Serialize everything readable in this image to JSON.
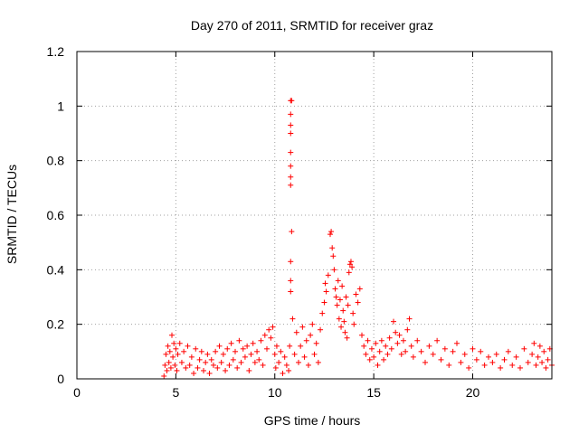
{
  "chart_data": {
    "type": "scatter",
    "title": "Day 270 of 2011, SRMTID for receiver graz",
    "xlabel": "GPS time / hours",
    "ylabel": "SRMTID / TECUs",
    "xlim": [
      0,
      24
    ],
    "ylim": [
      0,
      1.2
    ],
    "xticks": [
      0,
      5,
      10,
      15,
      20
    ],
    "xtick_labels": [
      "0",
      "5",
      "10",
      "15",
      "20"
    ],
    "yticks": [
      0,
      0.2,
      0.4,
      0.6,
      0.8,
      1.0,
      1.2
    ],
    "ytick_labels": [
      "0",
      "0.2",
      "0.4",
      "0.6",
      "0.8",
      "1",
      "1.2"
    ],
    "grid": true,
    "marker": "plus",
    "marker_color": "#ff0000",
    "series": [
      {
        "name": "SRMTID",
        "points": [
          [
            4.4,
            0.01
          ],
          [
            4.45,
            0.05
          ],
          [
            4.5,
            0.09
          ],
          [
            4.55,
            0.03
          ],
          [
            4.6,
            0.12
          ],
          [
            4.65,
            0.06
          ],
          [
            4.7,
            0.1
          ],
          [
            4.75,
            0.04
          ],
          [
            4.8,
            0.16
          ],
          [
            4.85,
            0.08
          ],
          [
            4.9,
            0.13
          ],
          [
            4.95,
            0.05
          ],
          [
            5.0,
            0.11
          ],
          [
            5.05,
            0.03
          ],
          [
            5.1,
            0.09
          ],
          [
            5.2,
            0.13
          ],
          [
            5.3,
            0.06
          ],
          [
            5.4,
            0.1
          ],
          [
            5.5,
            0.04
          ],
          [
            5.6,
            0.12
          ],
          [
            5.7,
            0.05
          ],
          [
            5.8,
            0.08
          ],
          [
            5.9,
            0.02
          ],
          [
            6.0,
            0.11
          ],
          [
            6.1,
            0.04
          ],
          [
            6.2,
            0.07
          ],
          [
            6.3,
            0.1
          ],
          [
            6.4,
            0.03
          ],
          [
            6.5,
            0.06
          ],
          [
            6.6,
            0.09
          ],
          [
            6.7,
            0.02
          ],
          [
            6.8,
            0.07
          ],
          [
            6.9,
            0.05
          ],
          [
            7.0,
            0.1
          ],
          [
            7.1,
            0.04
          ],
          [
            7.2,
            0.12
          ],
          [
            7.3,
            0.06
          ],
          [
            7.4,
            0.09
          ],
          [
            7.5,
            0.03
          ],
          [
            7.6,
            0.11
          ],
          [
            7.7,
            0.05
          ],
          [
            7.8,
            0.13
          ],
          [
            7.9,
            0.07
          ],
          [
            8.0,
            0.1
          ],
          [
            8.1,
            0.04
          ],
          [
            8.2,
            0.14
          ],
          [
            8.3,
            0.06
          ],
          [
            8.4,
            0.11
          ],
          [
            8.5,
            0.08
          ],
          [
            8.6,
            0.12
          ],
          [
            8.7,
            0.03
          ],
          [
            8.8,
            0.09
          ],
          [
            8.9,
            0.13
          ],
          [
            9.0,
            0.06
          ],
          [
            9.1,
            0.1
          ],
          [
            9.2,
            0.07
          ],
          [
            9.3,
            0.14
          ],
          [
            9.4,
            0.05
          ],
          [
            9.5,
            0.16
          ],
          [
            9.6,
            0.11
          ],
          [
            9.7,
            0.18
          ],
          [
            9.8,
            0.15
          ],
          [
            9.9,
            0.19
          ],
          [
            10.0,
            0.09
          ],
          [
            10.05,
            0.04
          ],
          [
            10.1,
            0.12
          ],
          [
            10.2,
            0.06
          ],
          [
            10.3,
            0.1
          ],
          [
            10.4,
            0.02
          ],
          [
            10.5,
            0.08
          ],
          [
            10.6,
            0.05
          ],
          [
            10.7,
            0.03
          ],
          [
            10.75,
            0.12
          ],
          [
            10.8,
            0.32
          ],
          [
            10.8,
            0.36
          ],
          [
            10.8,
            0.43
          ],
          [
            10.85,
            0.54
          ],
          [
            10.8,
            0.71
          ],
          [
            10.8,
            0.74
          ],
          [
            10.8,
            0.78
          ],
          [
            10.8,
            0.83
          ],
          [
            10.8,
            0.9
          ],
          [
            10.8,
            0.93
          ],
          [
            10.8,
            0.97
          ],
          [
            10.8,
            1.02
          ],
          [
            10.85,
            1.02
          ],
          [
            10.9,
            0.22
          ],
          [
            11.0,
            0.09
          ],
          [
            11.1,
            0.17
          ],
          [
            11.2,
            0.06
          ],
          [
            11.3,
            0.12
          ],
          [
            11.4,
            0.19
          ],
          [
            11.5,
            0.08
          ],
          [
            11.6,
            0.14
          ],
          [
            11.7,
            0.05
          ],
          [
            11.8,
            0.16
          ],
          [
            11.9,
            0.2
          ],
          [
            12.0,
            0.09
          ],
          [
            12.1,
            0.13
          ],
          [
            12.2,
            0.06
          ],
          [
            12.3,
            0.18
          ],
          [
            12.4,
            0.24
          ],
          [
            12.5,
            0.28
          ],
          [
            12.55,
            0.35
          ],
          [
            12.6,
            0.32
          ],
          [
            12.7,
            0.38
          ],
          [
            12.8,
            0.53
          ],
          [
            12.85,
            0.54
          ],
          [
            12.9,
            0.48
          ],
          [
            12.95,
            0.45
          ],
          [
            13.0,
            0.4
          ],
          [
            13.05,
            0.33
          ],
          [
            13.1,
            0.3
          ],
          [
            13.15,
            0.27
          ],
          [
            13.2,
            0.36
          ],
          [
            13.25,
            0.22
          ],
          [
            13.3,
            0.29
          ],
          [
            13.35,
            0.19
          ],
          [
            13.4,
            0.34
          ],
          [
            13.45,
            0.25
          ],
          [
            13.5,
            0.21
          ],
          [
            13.55,
            0.17
          ],
          [
            13.6,
            0.3
          ],
          [
            13.65,
            0.15
          ],
          [
            13.7,
            0.27
          ],
          [
            13.75,
            0.39
          ],
          [
            13.8,
            0.42
          ],
          [
            13.85,
            0.43
          ],
          [
            13.9,
            0.41
          ],
          [
            13.95,
            0.24
          ],
          [
            14.0,
            0.2
          ],
          [
            14.1,
            0.31
          ],
          [
            14.2,
            0.28
          ],
          [
            14.3,
            0.33
          ],
          [
            14.4,
            0.16
          ],
          [
            14.5,
            0.12
          ],
          [
            14.6,
            0.09
          ],
          [
            14.7,
            0.14
          ],
          [
            14.8,
            0.07
          ],
          [
            14.9,
            0.11
          ],
          [
            15.0,
            0.08
          ],
          [
            15.1,
            0.13
          ],
          [
            15.2,
            0.05
          ],
          [
            15.3,
            0.1
          ],
          [
            15.4,
            0.14
          ],
          [
            15.5,
            0.07
          ],
          [
            15.6,
            0.12
          ],
          [
            15.7,
            0.09
          ],
          [
            15.8,
            0.15
          ],
          [
            15.9,
            0.11
          ],
          [
            16.0,
            0.21
          ],
          [
            16.1,
            0.17
          ],
          [
            16.2,
            0.13
          ],
          [
            16.3,
            0.16
          ],
          [
            16.4,
            0.09
          ],
          [
            16.5,
            0.14
          ],
          [
            16.6,
            0.1
          ],
          [
            16.7,
            0.18
          ],
          [
            16.8,
            0.22
          ],
          [
            16.9,
            0.12
          ],
          [
            17.0,
            0.08
          ],
          [
            17.2,
            0.14
          ],
          [
            17.4,
            0.1
          ],
          [
            17.6,
            0.06
          ],
          [
            17.8,
            0.12
          ],
          [
            18.0,
            0.09
          ],
          [
            18.2,
            0.14
          ],
          [
            18.4,
            0.07
          ],
          [
            18.6,
            0.11
          ],
          [
            18.8,
            0.05
          ],
          [
            19.0,
            0.1
          ],
          [
            19.2,
            0.13
          ],
          [
            19.4,
            0.06
          ],
          [
            19.6,
            0.09
          ],
          [
            19.8,
            0.04
          ],
          [
            20.0,
            0.11
          ],
          [
            20.2,
            0.07
          ],
          [
            20.4,
            0.1
          ],
          [
            20.6,
            0.05
          ],
          [
            20.8,
            0.08
          ],
          [
            21.0,
            0.06
          ],
          [
            21.2,
            0.09
          ],
          [
            21.4,
            0.04
          ],
          [
            21.6,
            0.07
          ],
          [
            21.8,
            0.1
          ],
          [
            22.0,
            0.05
          ],
          [
            22.2,
            0.08
          ],
          [
            22.4,
            0.04
          ],
          [
            22.6,
            0.11
          ],
          [
            22.8,
            0.06
          ],
          [
            23.0,
            0.09
          ],
          [
            23.1,
            0.13
          ],
          [
            23.2,
            0.05
          ],
          [
            23.3,
            0.08
          ],
          [
            23.4,
            0.12
          ],
          [
            23.5,
            0.06
          ],
          [
            23.6,
            0.1
          ],
          [
            23.7,
            0.04
          ],
          [
            23.8,
            0.07
          ],
          [
            23.9,
            0.11
          ],
          [
            24.0,
            0.05
          ]
        ]
      }
    ]
  }
}
